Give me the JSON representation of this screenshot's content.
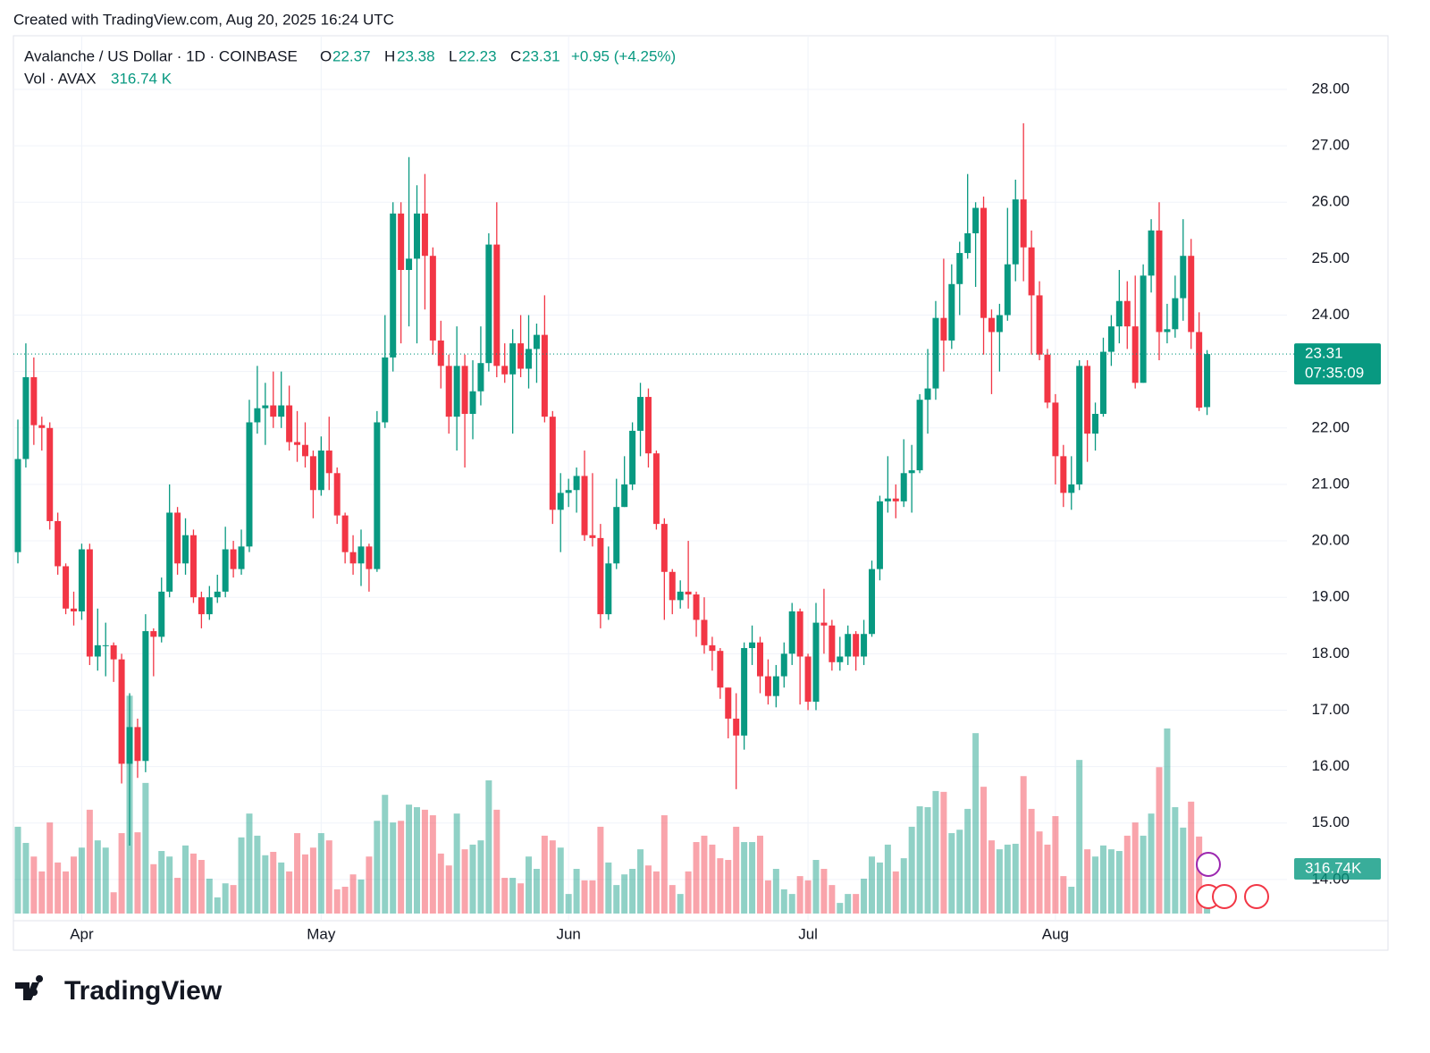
{
  "chart_data": {
    "type": "candlestick",
    "attribution": "Created with TradingView.com, Aug 20, 2025 16:24 UTC",
    "legend_title": "Avalanche / US Dollar · 1D · COINBASE",
    "ohlc_labels": [
      "O",
      "H",
      "L",
      "C"
    ],
    "change_label": "+0.95 (+4.25%)",
    "volume_title": "Vol · AVAX",
    "volume_label": "316.74 K",
    "volume_tag": "316.74K",
    "countdown": "07:35:09",
    "brand": "TradingView",
    "up_color": "#089981",
    "down_color": "#f23645",
    "grid": true,
    "ylim": [
      13.19,
      28.95
    ],
    "yticks": [
      {
        "value": 14,
        "label": "14.00"
      },
      {
        "value": 15,
        "label": "15.00"
      },
      {
        "value": 16,
        "label": "16.00"
      },
      {
        "value": 17,
        "label": "17.00"
      },
      {
        "value": 18,
        "label": "18.00"
      },
      {
        "value": 19,
        "label": "19.00"
      },
      {
        "value": 20,
        "label": "20.00"
      },
      {
        "value": 21,
        "label": "21.00"
      },
      {
        "value": 22,
        "label": "22.00"
      },
      {
        "value": 23,
        "label": "23.00"
      },
      {
        "value": 24,
        "label": "24.00"
      },
      {
        "value": 25,
        "label": "25.00"
      },
      {
        "value": 26,
        "label": "26.00"
      },
      {
        "value": 27,
        "label": "27.00"
      },
      {
        "value": 28,
        "label": "28.00"
      }
    ],
    "vol_ylim": [
      0,
      10000
    ],
    "categories": [
      null,
      null,
      null,
      null,
      null,
      null,
      null,
      null,
      "Apr",
      null,
      null,
      null,
      null,
      null,
      null,
      null,
      null,
      null,
      null,
      null,
      null,
      null,
      null,
      null,
      null,
      null,
      null,
      null,
      null,
      null,
      null,
      null,
      null,
      null,
      null,
      null,
      null,
      null,
      "May",
      null,
      null,
      null,
      null,
      null,
      null,
      null,
      null,
      null,
      null,
      null,
      null,
      null,
      null,
      null,
      null,
      null,
      null,
      null,
      null,
      null,
      null,
      null,
      null,
      null,
      null,
      null,
      null,
      null,
      null,
      "Jun",
      null,
      null,
      null,
      null,
      null,
      null,
      null,
      null,
      null,
      null,
      null,
      null,
      null,
      null,
      null,
      null,
      null,
      null,
      null,
      null,
      null,
      null,
      null,
      null,
      null,
      null,
      null,
      null,
      null,
      "Jul",
      null,
      null,
      null,
      null,
      null,
      null,
      null,
      null,
      null,
      null,
      null,
      null,
      null,
      null,
      null,
      null,
      null,
      null,
      null,
      null,
      null,
      null,
      null,
      null,
      null,
      null,
      null,
      null,
      null,
      null,
      "Aug",
      null,
      null,
      null,
      null,
      null,
      null,
      null,
      null,
      null,
      null,
      null,
      null,
      null,
      null,
      null,
      null,
      null,
      null,
      null
    ],
    "open": [
      19.8,
      21.45,
      22.9,
      22.05,
      22.0,
      20.35,
      19.55,
      18.8,
      18.75,
      19.85,
      17.95,
      18.15,
      18.15,
      17.9,
      16.05,
      16.7,
      16.1,
      18.4,
      18.3,
      19.1,
      20.5,
      19.6,
      20.1,
      19.0,
      18.7,
      19.0,
      19.1,
      19.85,
      19.5,
      19.9,
      22.1,
      22.35,
      22.4,
      22.2,
      22.4,
      21.75,
      21.7,
      21.5,
      20.9,
      21.6,
      21.2,
      20.45,
      19.8,
      19.6,
      19.9,
      19.5,
      22.1,
      23.25,
      25.8,
      24.8,
      25.0,
      25.8,
      25.05,
      23.55,
      23.1,
      22.2,
      23.1,
      22.25,
      22.65,
      23.15,
      25.25,
      23.1,
      22.95,
      23.5,
      23.05,
      23.4,
      23.65,
      22.2,
      20.55,
      20.85,
      20.9,
      21.15,
      20.1,
      20.05,
      18.7,
      19.6,
      20.6,
      21.0,
      21.95,
      22.55,
      21.55,
      20.3,
      19.45,
      18.95,
      19.1,
      19.05,
      18.6,
      18.15,
      18.05,
      17.4,
      16.85,
      16.55,
      18.1,
      18.2,
      17.6,
      17.25,
      17.6,
      18.0,
      18.75,
      17.95,
      17.15,
      18.55,
      18.5,
      17.85,
      17.95,
      18.35,
      17.95,
      18.35,
      19.5,
      20.7,
      20.75,
      20.7,
      21.2,
      21.25,
      22.5,
      22.7,
      23.95,
      23.55,
      24.55,
      25.1,
      25.45,
      25.9,
      23.95,
      23.7,
      24.0,
      24.9,
      26.05,
      25.2,
      24.35,
      23.3,
      22.45,
      21.5,
      20.85,
      21.0,
      23.1,
      21.9,
      22.25,
      23.35,
      23.8,
      24.25,
      23.8,
      22.8,
      24.7,
      25.5,
      23.7,
      23.75,
      24.3,
      25.05,
      23.7,
      22.37
    ],
    "high": [
      22.15,
      23.5,
      23.25,
      22.2,
      22.1,
      20.5,
      19.6,
      19.1,
      19.95,
      19.95,
      18.8,
      18.55,
      18.2,
      18.0,
      17.3,
      16.85,
      18.7,
      18.45,
      19.35,
      21.0,
      20.6,
      20.4,
      20.2,
      19.1,
      19.2,
      19.4,
      20.25,
      20.0,
      20.2,
      22.5,
      23.1,
      22.8,
      23.0,
      23.0,
      22.75,
      22.3,
      22.1,
      21.6,
      21.85,
      22.2,
      21.3,
      20.5,
      20.1,
      20.2,
      19.95,
      22.3,
      24.0,
      26.0,
      26.0,
      26.8,
      26.3,
      26.5,
      25.2,
      23.9,
      23.3,
      23.8,
      23.3,
      23.2,
      23.8,
      25.45,
      26.0,
      23.5,
      23.75,
      24.0,
      24.0,
      23.85,
      24.35,
      22.3,
      21.2,
      21.1,
      21.3,
      21.6,
      21.2,
      20.3,
      19.9,
      21.1,
      21.5,
      22.1,
      22.8,
      22.7,
      21.6,
      20.4,
      19.5,
      19.3,
      20.0,
      19.1,
      19.0,
      18.3,
      18.1,
      17.4,
      17.3,
      18.2,
      18.5,
      18.3,
      17.9,
      17.8,
      18.2,
      18.9,
      18.8,
      18.0,
      18.9,
      19.15,
      18.6,
      18.3,
      18.5,
      18.4,
      18.6,
      19.65,
      20.8,
      21.5,
      21.0,
      21.8,
      21.7,
      22.6,
      23.4,
      24.25,
      25.0,
      24.9,
      25.3,
      26.5,
      26.0,
      26.1,
      24.1,
      24.2,
      25.9,
      26.4,
      27.4,
      25.5,
      24.6,
      23.4,
      22.6,
      21.7,
      21.5,
      23.2,
      23.2,
      22.45,
      23.6,
      24.0,
      24.8,
      24.6,
      24.7,
      24.9,
      25.7,
      26.0,
      24.2,
      24.7,
      25.7,
      25.35,
      24.05,
      23.38
    ],
    "low": [
      19.6,
      21.3,
      21.7,
      21.6,
      20.2,
      19.4,
      18.7,
      18.5,
      18.6,
      17.8,
      17.7,
      17.6,
      17.5,
      15.7,
      14.6,
      15.8,
      15.9,
      17.6,
      18.2,
      19.0,
      19.4,
      19.4,
      18.9,
      18.45,
      18.6,
      18.9,
      19.0,
      19.35,
      19.4,
      19.8,
      21.9,
      21.7,
      22.0,
      22.0,
      21.6,
      21.4,
      21.3,
      20.4,
      20.8,
      20.9,
      20.3,
      19.6,
      19.4,
      19.2,
      19.1,
      19.45,
      22.0,
      23.0,
      23.5,
      23.8,
      23.5,
      24.1,
      23.3,
      22.7,
      21.9,
      21.6,
      21.3,
      21.8,
      22.4,
      23.0,
      22.9,
      22.8,
      21.9,
      22.9,
      22.7,
      22.8,
      22.1,
      20.3,
      19.8,
      20.6,
      20.5,
      20.0,
      19.9,
      18.45,
      18.6,
      19.5,
      20.6,
      20.9,
      21.5,
      21.3,
      20.2,
      18.6,
      18.7,
      18.8,
      18.8,
      18.3,
      18.0,
      17.7,
      17.2,
      16.5,
      15.6,
      16.3,
      17.8,
      17.3,
      17.1,
      17.05,
      17.4,
      17.8,
      17.1,
      17.0,
      17.0,
      18.0,
      17.7,
      17.7,
      17.8,
      17.7,
      17.8,
      18.3,
      19.3,
      20.5,
      20.4,
      20.6,
      20.5,
      21.2,
      21.9,
      22.5,
      23.0,
      23.4,
      24.0,
      25.0,
      24.5,
      23.3,
      22.6,
      23.0,
      23.9,
      24.6,
      24.6,
      23.3,
      23.2,
      22.35,
      21.0,
      20.6,
      20.55,
      20.9,
      21.4,
      21.6,
      22.2,
      23.1,
      23.5,
      23.4,
      22.7,
      22.8,
      24.4,
      23.2,
      23.5,
      23.6,
      23.9,
      23.4,
      22.3,
      22.23
    ],
    "close": [
      21.45,
      22.9,
      22.05,
      22.0,
      20.35,
      19.55,
      18.8,
      18.75,
      19.85,
      17.95,
      18.15,
      18.15,
      17.9,
      16.05,
      16.7,
      16.1,
      18.4,
      18.3,
      19.1,
      20.5,
      19.6,
      20.1,
      19.0,
      18.7,
      19.0,
      19.1,
      19.85,
      19.5,
      19.9,
      22.1,
      22.35,
      22.4,
      22.2,
      22.4,
      21.75,
      21.7,
      21.5,
      20.9,
      21.6,
      21.2,
      20.45,
      19.8,
      19.6,
      19.9,
      19.5,
      22.1,
      23.25,
      25.8,
      24.8,
      25.0,
      25.8,
      25.05,
      23.55,
      23.1,
      22.2,
      23.1,
      22.25,
      22.65,
      23.15,
      25.25,
      23.1,
      22.95,
      23.5,
      23.05,
      23.4,
      23.65,
      22.2,
      20.55,
      20.85,
      20.9,
      21.15,
      20.1,
      20.05,
      18.7,
      19.6,
      20.6,
      21.0,
      21.95,
      22.55,
      21.55,
      20.3,
      19.45,
      18.95,
      19.1,
      19.05,
      18.6,
      18.15,
      18.05,
      17.4,
      16.85,
      16.55,
      18.1,
      18.2,
      17.6,
      17.25,
      17.6,
      18.0,
      18.75,
      17.95,
      17.15,
      18.55,
      18.5,
      17.85,
      17.95,
      18.35,
      17.95,
      18.35,
      19.5,
      20.7,
      20.75,
      20.7,
      21.2,
      21.25,
      22.5,
      22.7,
      23.95,
      23.55,
      24.55,
      25.1,
      25.45,
      25.9,
      23.95,
      23.7,
      24.0,
      24.9,
      26.05,
      25.2,
      24.35,
      23.3,
      22.45,
      21.5,
      20.85,
      21.0,
      23.1,
      21.9,
      22.25,
      23.35,
      23.8,
      24.25,
      23.8,
      22.8,
      24.7,
      25.5,
      23.7,
      23.75,
      24.3,
      25.05,
      23.7,
      22.36,
      23.31
    ],
    "volume": [
      2040,
      1660,
      1340,
      990,
      2140,
      1200,
      990,
      1340,
      1550,
      2440,
      1720,
      1550,
      500,
      1890,
      5120,
      1910,
      3070,
      1160,
      1470,
      1340,
      840,
      1600,
      1410,
      1260,
      820,
      380,
      710,
      670,
      1790,
      2350,
      1830,
      1370,
      1450,
      1200,
      990,
      1890,
      1390,
      1550,
      1890,
      1720,
      570,
      630,
      920,
      800,
      1340,
      2180,
      2790,
      2140,
      2180,
      2560,
      2500,
      2440,
      2310,
      1410,
      1130,
      2350,
      1510,
      1620,
      1720,
      3130,
      2440,
      840,
      840,
      710,
      1340,
      1050,
      1830,
      1720,
      1550,
      460,
      1050,
      780,
      780,
      2040,
      1200,
      670,
      920,
      1050,
      1510,
      1130,
      990,
      2310,
      670,
      460,
      990,
      1680,
      1830,
      1620,
      1300,
      1260,
      2040,
      1680,
      1680,
      1830,
      780,
      1050,
      570,
      460,
      880,
      780,
      1260,
      1050,
      670,
      250,
      460,
      460,
      820,
      1340,
      1200,
      1620,
      990,
      1300,
      2040,
      2520,
      2500,
      2880,
      2860,
      1890,
      1970,
      2460,
      4240,
      2980,
      1720,
      1510,
      1620,
      1640,
      3230,
      2460,
      1930,
      1620,
      2290,
      880,
      630,
      3610,
      1510,
      1340,
      1600,
      1510,
      1470,
      1830,
      2140,
      1830,
      2350,
      3440,
      4350,
      2500,
      2020,
      2630,
      1810,
      316.74
    ]
  }
}
